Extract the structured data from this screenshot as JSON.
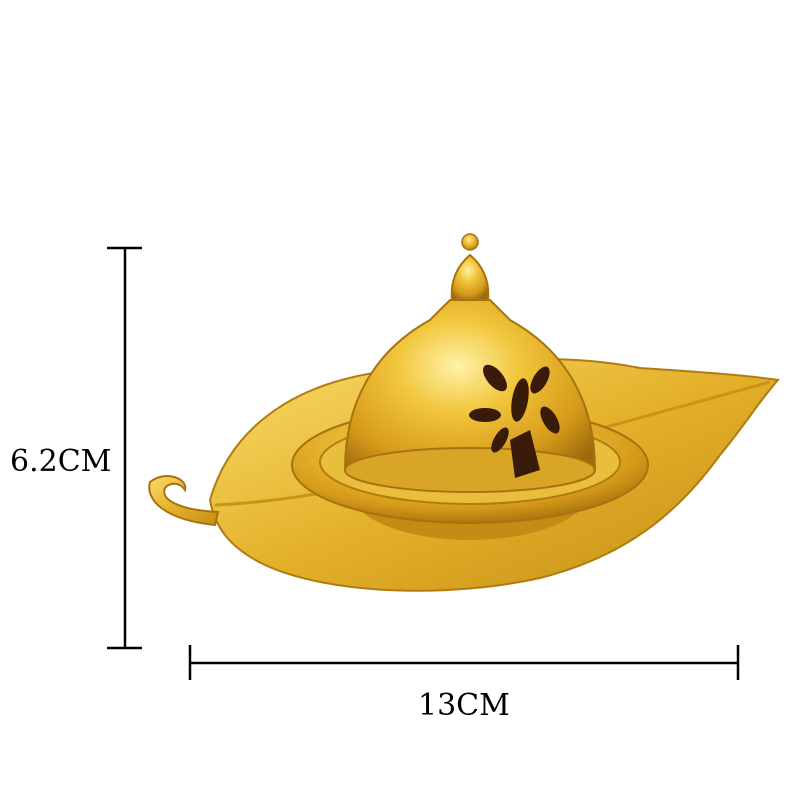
{
  "product": {
    "description_visible": "",
    "colors": {
      "gold": "#e0b22a",
      "gold_light": "#f7dd74",
      "gold_dark": "#a8720e",
      "opening": "#3a1a08",
      "background": "#ffffff",
      "dimension_line": "#000000"
    }
  },
  "dimensions": {
    "height_label": "6.2CM",
    "width_label": "13CM"
  }
}
